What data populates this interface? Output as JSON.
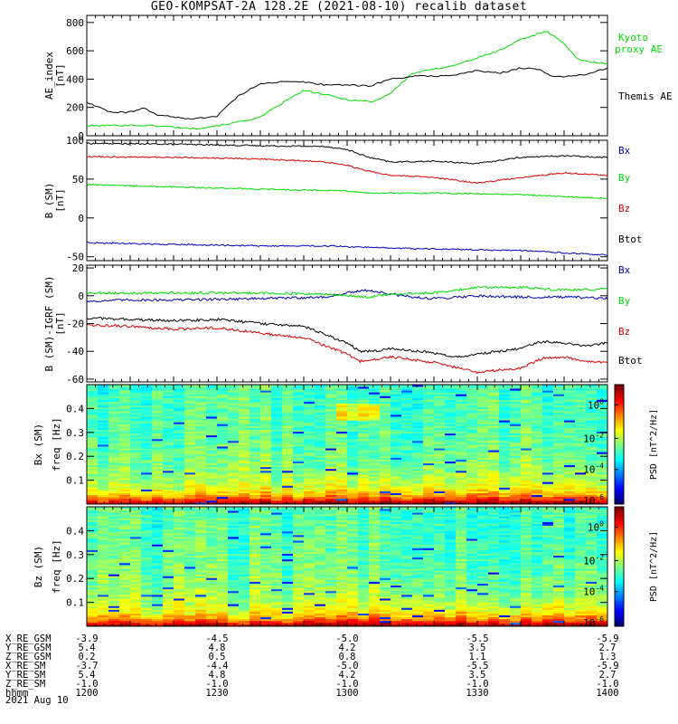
{
  "title": "GEO-KOMPSAT-2A 128.2E (2021-08-10) recalib dataset",
  "date_label": "2021 Aug 10",
  "ephemeris": {
    "labels": [
      "X_RE_GSM",
      "Y_RE_GSM",
      "Z_RE_GSM",
      "X_RE_SM",
      "Y_RE_SM",
      "Z_RE_SM",
      "hhmm"
    ],
    "columns": [
      [
        "-3.9",
        "5.4",
        "0.2",
        "-3.7",
        "5.4",
        "-1.0",
        "1200"
      ],
      [
        "-4.5",
        "4.8",
        "0.5",
        "-4.4",
        "4.8",
        "-1.0",
        "1230"
      ],
      [
        "-5.0",
        "4.2",
        "0.8",
        "-5.0",
        "4.2",
        "-1.0",
        "1300"
      ],
      [
        "-5.5",
        "3.5",
        "1.1",
        "-5.5",
        "3.5",
        "-1.0",
        "1330"
      ],
      [
        "-5.9",
        "2.7",
        "1.3",
        "-5.9",
        "2.7",
        "-1.0",
        "1400"
      ]
    ]
  },
  "colors": {
    "black": "#000000",
    "green": "#00dd00",
    "red": "#dd0000",
    "blue": "#0000bb"
  },
  "chart_data": [
    {
      "type": "line",
      "ylabel": "AE_index [nT]",
      "ylim": [
        0,
        850
      ],
      "yticks": [
        0,
        200,
        400,
        600,
        800
      ],
      "xlim": [
        0,
        120
      ],
      "series": [
        {
          "name": "Kyoto proxy AE",
          "color": "#00dd00",
          "x": [
            0,
            10,
            16,
            25,
            32,
            40,
            45,
            50,
            55,
            60,
            66,
            70,
            75,
            80,
            85,
            90,
            95,
            100,
            104,
            106,
            110,
            113,
            116,
            120
          ],
          "y": [
            70,
            75,
            70,
            50,
            80,
            130,
            230,
            320,
            290,
            255,
            240,
            300,
            440,
            470,
            500,
            550,
            600,
            680,
            720,
            740,
            650,
            540,
            520,
            510
          ]
        },
        {
          "name": "Themis AE",
          "color": "#000000",
          "x": [
            0,
            5,
            10,
            13,
            16,
            20,
            25,
            30,
            32,
            35,
            40,
            45,
            50,
            55,
            60,
            65,
            70,
            75,
            80,
            85,
            90,
            95,
            100,
            104,
            107,
            110,
            115,
            120
          ],
          "y": [
            240,
            170,
            165,
            200,
            150,
            130,
            120,
            140,
            200,
            280,
            370,
            380,
            380,
            360,
            360,
            350,
            400,
            420,
            420,
            430,
            460,
            440,
            480,
            470,
            420,
            420,
            430,
            480
          ]
        }
      ]
    },
    {
      "type": "line",
      "ylabel": "B (SM) [nT]",
      "ylim": [
        -55,
        100
      ],
      "yticks": [
        -50,
        0,
        50,
        100
      ],
      "xlim": [
        0,
        120
      ],
      "series": [
        {
          "name": "Btot",
          "color": "#000000",
          "x": [
            0,
            20,
            40,
            55,
            60,
            65,
            70,
            80,
            90,
            100,
            110,
            120
          ],
          "y": [
            96,
            95,
            93,
            92,
            88,
            78,
            72,
            73,
            70,
            78,
            80,
            78
          ]
        },
        {
          "name": "Bz",
          "color": "#dd0000",
          "x": [
            0,
            20,
            40,
            55,
            60,
            65,
            70,
            80,
            90,
            100,
            110,
            120
          ],
          "y": [
            79,
            78,
            76,
            72,
            68,
            60,
            55,
            52,
            45,
            52,
            58,
            55
          ]
        },
        {
          "name": "By",
          "color": "#00dd00",
          "x": [
            0,
            20,
            40,
            60,
            65,
            80,
            100,
            120
          ],
          "y": [
            43,
            40,
            37,
            35,
            32,
            32,
            30,
            25
          ]
        },
        {
          "name": "Bx",
          "color": "#0000bb",
          "x": [
            0,
            20,
            40,
            55,
            65,
            80,
            100,
            110,
            120
          ],
          "y": [
            -32,
            -34,
            -36,
            -36,
            -38,
            -40,
            -42,
            -45,
            -48
          ]
        }
      ]
    },
    {
      "type": "line",
      "ylabel": "B (SM)-IGRF (SM) [nT]",
      "ylim": [
        -62,
        22
      ],
      "yticks": [
        -60,
        -40,
        -20,
        0,
        20
      ],
      "xlim": [
        0,
        120
      ],
      "series": [
        {
          "name": "Bx",
          "color": "#0000bb",
          "x": [
            0,
            10,
            20,
            40,
            55,
            60,
            65,
            70,
            75,
            80,
            90,
            100,
            110,
            120
          ],
          "y": [
            -4,
            -3,
            -3,
            -2,
            -1,
            2,
            4,
            1,
            -1,
            -2,
            0,
            -1,
            -1,
            -2
          ]
        },
        {
          "name": "By",
          "color": "#00dd00",
          "x": [
            0,
            20,
            40,
            55,
            60,
            65,
            70,
            80,
            90,
            100,
            110,
            120
          ],
          "y": [
            2,
            2,
            2,
            1,
            0,
            -1,
            1,
            2,
            6,
            6,
            4,
            5
          ]
        },
        {
          "name": "Btot",
          "color": "#000000",
          "x": [
            0,
            10,
            20,
            30,
            40,
            50,
            55,
            60,
            63,
            66,
            70,
            80,
            85,
            90,
            100,
            105,
            110,
            115,
            120
          ],
          "y": [
            -16,
            -17,
            -18,
            -17,
            -20,
            -22,
            -28,
            -34,
            -40,
            -40,
            -38,
            -41,
            -44,
            -42,
            -38,
            -33,
            -34,
            -36,
            -34
          ]
        },
        {
          "name": "Bz",
          "color": "#dd0000",
          "x": [
            0,
            10,
            20,
            30,
            40,
            50,
            55,
            60,
            63,
            66,
            70,
            80,
            90,
            100,
            105,
            110,
            115,
            120
          ],
          "y": [
            -21,
            -22,
            -24,
            -23,
            -27,
            -30,
            -36,
            -42,
            -47,
            -46,
            -44,
            -48,
            -55,
            -52,
            -45,
            -44,
            -47,
            -48
          ]
        }
      ]
    },
    {
      "type": "heatmap",
      "ylabel": "Bx (SM) freq [Hz]",
      "ylim": [
        0,
        0.5
      ],
      "yticks": [
        0.1,
        0.2,
        0.3,
        0.4
      ],
      "xlim": [
        0,
        120
      ],
      "colorbar": {
        "label": "PSD [nT^2/Hz]",
        "ticks": [
          "10^0",
          "10^-2",
          "10^-4",
          "10^-6"
        ]
      }
    },
    {
      "type": "heatmap",
      "ylabel": "Bz (SM) freq [Hz]",
      "ylim": [
        0,
        0.5
      ],
      "yticks": [
        0.1,
        0.2,
        0.3,
        0.4
      ],
      "xlim": [
        0,
        120
      ],
      "colorbar": {
        "label": "PSD [nT^2/Hz]",
        "ticks": [
          "10^0",
          "10^-2",
          "10^-4",
          "10^-6"
        ]
      }
    }
  ]
}
